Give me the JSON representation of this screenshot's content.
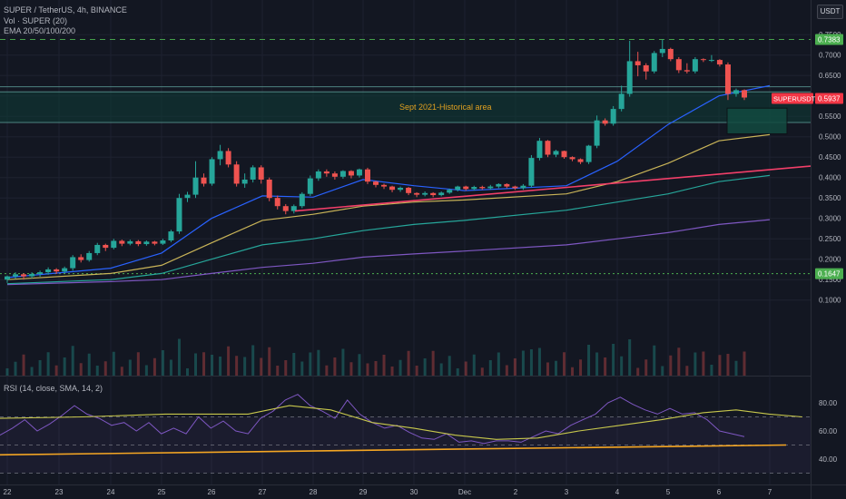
{
  "header": {
    "symbol_line": "SUPER / TetherUS, 4h, BINANCE",
    "volume_line": "Vol · SUPER (20)",
    "ema_line": "EMA 20/50/100/200",
    "currency_button": "USDT"
  },
  "rsi_panel": {
    "label": "RSI (14, close, SMA, 14, 2)"
  },
  "colors": {
    "background": "#131722",
    "up_candle": "#26a69a",
    "down_candle": "#ef5350",
    "ema20": "#2962ff",
    "ema50": "#c9b458",
    "ema100": "#26a69a",
    "ema200": "#7e57c2",
    "trendline": "#f23f69",
    "rsi_line": "#7e57c2",
    "rsi_ma": "#c8c84c",
    "rsi_trendline": "#f5a623",
    "zone_fill": "#0e3d36"
  },
  "chart_data": [
    {
      "type": "candlestick",
      "title": "SUPER / TetherUS, 4h, BINANCE",
      "x_tick_labels": [
        "22",
        "23",
        "24",
        "25",
        "26",
        "27",
        "28",
        "29",
        "30",
        "Dec",
        "2",
        "3",
        "4",
        "5",
        "6",
        "7"
      ],
      "y_tick_labels": [
        "0.7500",
        "0.7000",
        "0.6500",
        "0.6000",
        "0.5500",
        "0.5000",
        "0.4500",
        "0.4000",
        "0.3500",
        "0.3000",
        "0.2500",
        "0.2000",
        "0.1500",
        "0.1000"
      ],
      "ylim": [
        0.07,
        0.755
      ],
      "price_labels": [
        {
          "label": "0.7383",
          "value": 0.7383,
          "color": "#4caf50"
        },
        {
          "label": "0.5937",
          "value": 0.5937,
          "color": "#f23645",
          "symbol": "SUPERUSDT"
        },
        {
          "label": "0.1647",
          "value": 0.1647,
          "color": "#4caf50"
        }
      ],
      "horizontal_levels": [
        0.7383,
        0.6225,
        0.61,
        0.535
      ],
      "zone": {
        "label": "Sept 2021-Historical area",
        "from": 0.535,
        "to": 0.61
      },
      "projection_box": {
        "from": 0.507,
        "to": 0.57
      },
      "trendline": {
        "from": [
          28,
          0.318
        ],
        "to": [
          7.6,
          0.428
        ]
      },
      "candles": [
        [
          0.15,
          0.158,
          0.145,
          0.16,
          0.142
        ],
        [
          0.158,
          0.163,
          0.155,
          0.168,
          0.152
        ],
        [
          0.163,
          0.158,
          0.156,
          0.166,
          0.15
        ],
        [
          0.158,
          0.164,
          0.156,
          0.168,
          0.153
        ],
        [
          0.164,
          0.168,
          0.16,
          0.172,
          0.157
        ],
        [
          0.168,
          0.175,
          0.165,
          0.18,
          0.162
        ],
        [
          0.175,
          0.17,
          0.168,
          0.178,
          0.164
        ],
        [
          0.17,
          0.178,
          0.168,
          0.182,
          0.166
        ],
        [
          0.178,
          0.205,
          0.175,
          0.21,
          0.172
        ],
        [
          0.205,
          0.198,
          0.195,
          0.212,
          0.192
        ],
        [
          0.198,
          0.215,
          0.196,
          0.22,
          0.194
        ],
        [
          0.215,
          0.235,
          0.212,
          0.24,
          0.21
        ],
        [
          0.235,
          0.228,
          0.226,
          0.238,
          0.22
        ],
        [
          0.228,
          0.245,
          0.226,
          0.25,
          0.224
        ],
        [
          0.245,
          0.238,
          0.236,
          0.248,
          0.232
        ],
        [
          0.238,
          0.244,
          0.236,
          0.248,
          0.234
        ],
        [
          0.244,
          0.237,
          0.235,
          0.247,
          0.232
        ],
        [
          0.237,
          0.243,
          0.235,
          0.246,
          0.233
        ],
        [
          0.243,
          0.238,
          0.236,
          0.245,
          0.234
        ],
        [
          0.238,
          0.246,
          0.237,
          0.25,
          0.235
        ],
        [
          0.246,
          0.268,
          0.244,
          0.272,
          0.242
        ],
        [
          0.268,
          0.35,
          0.266,
          0.36,
          0.262
        ],
        [
          0.35,
          0.358,
          0.345,
          0.365,
          0.34
        ],
        [
          0.358,
          0.4,
          0.355,
          0.44,
          0.35
        ],
        [
          0.4,
          0.385,
          0.382,
          0.41,
          0.378
        ],
        [
          0.385,
          0.445,
          0.383,
          0.45,
          0.38
        ],
        [
          0.445,
          0.465,
          0.44,
          0.48,
          0.43
        ],
        [
          0.465,
          0.432,
          0.43,
          0.472,
          0.425
        ],
        [
          0.432,
          0.385,
          0.383,
          0.44,
          0.378
        ],
        [
          0.385,
          0.395,
          0.38,
          0.41,
          0.375
        ],
        [
          0.395,
          0.425,
          0.392,
          0.43,
          0.388
        ],
        [
          0.425,
          0.395,
          0.392,
          0.43,
          0.385
        ],
        [
          0.395,
          0.35,
          0.348,
          0.4,
          0.342
        ],
        [
          0.35,
          0.33,
          0.328,
          0.356,
          0.322
        ],
        [
          0.33,
          0.318,
          0.315,
          0.335,
          0.31
        ],
        [
          0.318,
          0.33,
          0.316,
          0.334,
          0.312
        ],
        [
          0.33,
          0.36,
          0.328,
          0.364,
          0.325
        ],
        [
          0.36,
          0.398,
          0.358,
          0.405,
          0.355
        ],
        [
          0.398,
          0.415,
          0.395,
          0.42,
          0.392
        ],
        [
          0.415,
          0.41,
          0.405,
          0.42,
          0.402
        ],
        [
          0.41,
          0.402,
          0.398,
          0.415,
          0.395
        ],
        [
          0.402,
          0.416,
          0.4,
          0.418,
          0.397
        ],
        [
          0.416,
          0.405,
          0.402,
          0.418,
          0.398
        ],
        [
          0.405,
          0.42,
          0.402,
          0.422,
          0.4
        ],
        [
          0.42,
          0.39,
          0.388,
          0.424,
          0.384
        ],
        [
          0.39,
          0.382,
          0.38,
          0.392,
          0.376
        ],
        [
          0.382,
          0.378,
          0.375,
          0.385,
          0.372
        ],
        [
          0.378,
          0.37,
          0.368,
          0.38,
          0.364
        ],
        [
          0.37,
          0.375,
          0.368,
          0.378,
          0.365
        ],
        [
          0.375,
          0.362,
          0.36,
          0.377,
          0.357
        ],
        [
          0.362,
          0.358,
          0.355,
          0.364,
          0.352
        ],
        [
          0.358,
          0.362,
          0.356,
          0.366,
          0.354
        ],
        [
          0.362,
          0.357,
          0.355,
          0.364,
          0.352
        ],
        [
          0.357,
          0.363,
          0.356,
          0.366,
          0.354
        ],
        [
          0.363,
          0.37,
          0.362,
          0.373,
          0.36
        ],
        [
          0.37,
          0.378,
          0.368,
          0.38,
          0.366
        ],
        [
          0.378,
          0.372,
          0.37,
          0.38,
          0.368
        ],
        [
          0.372,
          0.377,
          0.37,
          0.38,
          0.368
        ],
        [
          0.377,
          0.374,
          0.372,
          0.38,
          0.37
        ],
        [
          0.374,
          0.378,
          0.372,
          0.382,
          0.37
        ],
        [
          0.378,
          0.384,
          0.376,
          0.386,
          0.374
        ],
        [
          0.384,
          0.378,
          0.376,
          0.386,
          0.374
        ],
        [
          0.378,
          0.374,
          0.372,
          0.38,
          0.37
        ],
        [
          0.374,
          0.38,
          0.372,
          0.384,
          0.37
        ],
        [
          0.38,
          0.448,
          0.378,
          0.455,
          0.376
        ],
        [
          0.448,
          0.49,
          0.445,
          0.497,
          0.442
        ],
        [
          0.49,
          0.456,
          0.454,
          0.492,
          0.45
        ],
        [
          0.456,
          0.465,
          0.453,
          0.468,
          0.45
        ],
        [
          0.465,
          0.45,
          0.448,
          0.466,
          0.446
        ],
        [
          0.45,
          0.445,
          0.442,
          0.452,
          0.44
        ],
        [
          0.445,
          0.438,
          0.436,
          0.447,
          0.433
        ],
        [
          0.438,
          0.478,
          0.436,
          0.48,
          0.433
        ],
        [
          0.478,
          0.54,
          0.476,
          0.552,
          0.472
        ],
        [
          0.54,
          0.532,
          0.53,
          0.545,
          0.527
        ],
        [
          0.532,
          0.568,
          0.53,
          0.575,
          0.527
        ],
        [
          0.568,
          0.605,
          0.565,
          0.625,
          0.562
        ],
        [
          0.605,
          0.685,
          0.602,
          0.735,
          0.598
        ],
        [
          0.685,
          0.675,
          0.66,
          0.708,
          0.648
        ],
        [
          0.675,
          0.66,
          0.655,
          0.68,
          0.64
        ],
        [
          0.66,
          0.705,
          0.658,
          0.71,
          0.655
        ],
        [
          0.705,
          0.715,
          0.7,
          0.738,
          0.695
        ],
        [
          0.715,
          0.69,
          0.688,
          0.718,
          0.685
        ],
        [
          0.69,
          0.663,
          0.66,
          0.695,
          0.656
        ],
        [
          0.663,
          0.66,
          0.658,
          0.68,
          0.655
        ],
        [
          0.66,
          0.69,
          0.658,
          0.695,
          0.655
        ],
        [
          0.69,
          0.688,
          0.686,
          0.692,
          0.683
        ],
        [
          0.688,
          0.688,
          0.686,
          0.7,
          0.683
        ],
        [
          0.688,
          0.677,
          0.675,
          0.69,
          0.672
        ],
        [
          0.677,
          0.605,
          0.6,
          0.682,
          0.59
        ],
        [
          0.605,
          0.614,
          0.6,
          0.618,
          0.598
        ],
        [
          0.614,
          0.596,
          0.593,
          0.616,
          0.59
        ]
      ],
      "ema20": [
        [
          22,
          0.155
        ],
        [
          24,
          0.178
        ],
        [
          25,
          0.215
        ],
        [
          26,
          0.3
        ],
        [
          27,
          0.355
        ],
        [
          28,
          0.352
        ],
        [
          29,
          0.395
        ],
        [
          30,
          0.38
        ],
        [
          31,
          0.368
        ],
        [
          33,
          0.38
        ],
        [
          34,
          0.44
        ],
        [
          35,
          0.53
        ],
        [
          36,
          0.6
        ],
        [
          37,
          0.625
        ]
      ],
      "ema50": [
        [
          22,
          0.15
        ],
        [
          24,
          0.165
        ],
        [
          25,
          0.185
        ],
        [
          26,
          0.24
        ],
        [
          27,
          0.295
        ],
        [
          28,
          0.31
        ],
        [
          29,
          0.33
        ],
        [
          30,
          0.34
        ],
        [
          31,
          0.345
        ],
        [
          33,
          0.36
        ],
        [
          34,
          0.39
        ],
        [
          35,
          0.435
        ],
        [
          36,
          0.49
        ],
        [
          37,
          0.505
        ]
      ],
      "ema100": [
        [
          22,
          0.14
        ],
        [
          24,
          0.15
        ],
        [
          25,
          0.165
        ],
        [
          26,
          0.2
        ],
        [
          27,
          0.235
        ],
        [
          28,
          0.25
        ],
        [
          29,
          0.27
        ],
        [
          30,
          0.285
        ],
        [
          31,
          0.295
        ],
        [
          33,
          0.32
        ],
        [
          34,
          0.34
        ],
        [
          35,
          0.36
        ],
        [
          36,
          0.39
        ],
        [
          37,
          0.405
        ]
      ],
      "ema200": [
        [
          22,
          0.138
        ],
        [
          24,
          0.145
        ],
        [
          25,
          0.15
        ],
        [
          26,
          0.165
        ],
        [
          27,
          0.18
        ],
        [
          28,
          0.19
        ],
        [
          29,
          0.205
        ],
        [
          30,
          0.213
        ],
        [
          31,
          0.22
        ],
        [
          33,
          0.235
        ],
        [
          34,
          0.25
        ],
        [
          35,
          0.265
        ],
        [
          36,
          0.285
        ],
        [
          37,
          0.297
        ]
      ]
    },
    {
      "type": "line",
      "title": "RSI (14, close, SMA, 14, 2)",
      "y_tick_labels": [
        "80.00",
        "60.00",
        "40.00"
      ],
      "ylim": [
        27,
        94
      ],
      "levels": [
        70,
        50,
        30
      ],
      "rsi": [
        [
          0,
          57
        ],
        [
          3,
          62
        ],
        [
          6,
          68
        ],
        [
          9,
          60
        ],
        [
          12,
          65
        ],
        [
          15,
          71
        ],
        [
          18,
          78
        ],
        [
          21,
          72
        ],
        [
          24,
          69
        ],
        [
          27,
          64
        ],
        [
          30,
          66
        ],
        [
          33,
          60
        ],
        [
          36,
          66
        ],
        [
          39,
          58
        ],
        [
          42,
          62
        ],
        [
          45,
          58
        ],
        [
          48,
          70
        ],
        [
          51,
          62
        ],
        [
          54,
          67
        ],
        [
          57,
          60
        ],
        [
          60,
          58
        ],
        [
          63,
          69
        ],
        [
          66,
          74
        ],
        [
          69,
          82
        ],
        [
          72,
          86
        ],
        [
          75,
          78
        ],
        [
          78,
          74
        ],
        [
          81,
          69
        ],
        [
          84,
          82
        ],
        [
          87,
          72
        ],
        [
          90,
          66
        ],
        [
          93,
          62
        ],
        [
          96,
          64
        ],
        [
          99,
          59
        ],
        [
          102,
          55
        ],
        [
          105,
          54
        ],
        [
          108,
          58
        ],
        [
          111,
          52
        ],
        [
          114,
          53
        ],
        [
          117,
          51
        ],
        [
          120,
          53
        ],
        [
          123,
          53
        ],
        [
          126,
          52
        ],
        [
          129,
          56
        ],
        [
          132,
          60
        ],
        [
          135,
          58
        ],
        [
          138,
          64
        ],
        [
          141,
          68
        ],
        [
          144,
          72
        ],
        [
          147,
          80
        ],
        [
          150,
          84
        ],
        [
          153,
          79
        ],
        [
          156,
          75
        ],
        [
          159,
          72
        ],
        [
          162,
          76
        ],
        [
          165,
          72
        ],
        [
          168,
          73
        ],
        [
          171,
          68
        ],
        [
          174,
          60
        ],
        [
          177,
          58
        ],
        [
          180,
          56
        ]
      ],
      "rsi_ma": [
        [
          0,
          69
        ],
        [
          20,
          70
        ],
        [
          40,
          72
        ],
        [
          60,
          72
        ],
        [
          70,
          78
        ],
        [
          80,
          75
        ],
        [
          90,
          66
        ],
        [
          100,
          62
        ],
        [
          110,
          57
        ],
        [
          120,
          54
        ],
        [
          130,
          55
        ],
        [
          140,
          60
        ],
        [
          150,
          64
        ],
        [
          160,
          68
        ],
        [
          170,
          73
        ],
        [
          178,
          75
        ],
        [
          186,
          72
        ],
        [
          194,
          70
        ]
      ],
      "trendline": {
        "from": [
          0,
          43
        ],
        "to": [
          194,
          50
        ]
      }
    }
  ]
}
